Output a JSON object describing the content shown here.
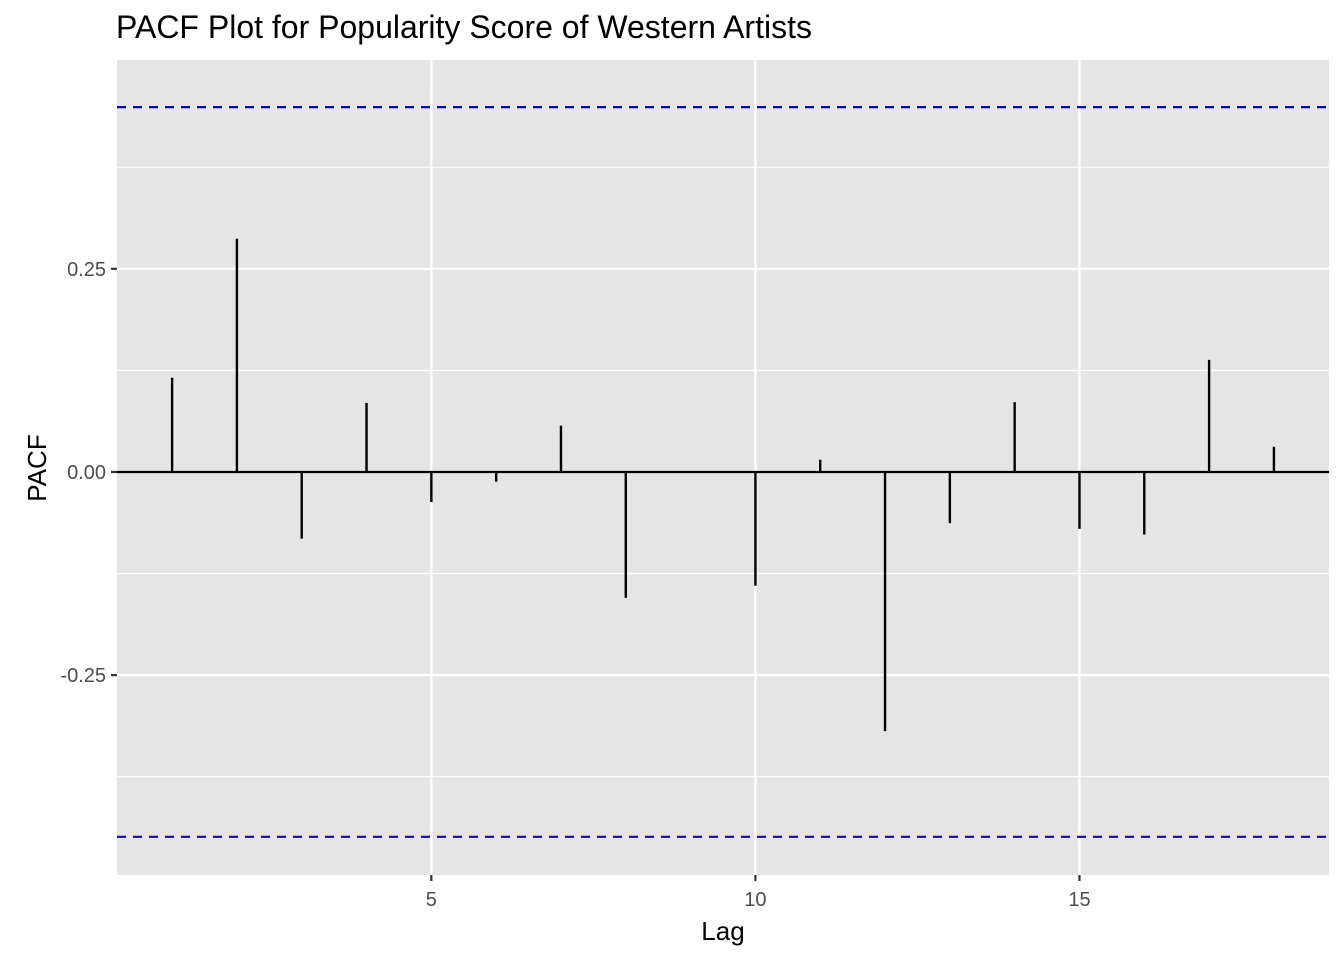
{
  "chart_data": {
    "type": "bar",
    "title": "PACF Plot for Popularity Score of Western Artists",
    "xlabel": "Lag",
    "ylabel": "PACF",
    "x": [
      1,
      2,
      3,
      4,
      5,
      6,
      7,
      8,
      9,
      10,
      11,
      12,
      13,
      14,
      15,
      16,
      17,
      18
    ],
    "values": [
      0.116,
      0.287,
      -0.082,
      0.085,
      -0.037,
      -0.012,
      0.057,
      -0.155,
      0.0,
      -0.14,
      0.015,
      -0.319,
      -0.063,
      0.086,
      -0.07,
      -0.077,
      0.138,
      0.031
    ],
    "confidence_bounds": [
      0.449,
      -0.449
    ],
    "xlim": [
      0.15,
      18.85
    ],
    "ylim": [
      -0.496,
      0.507
    ],
    "x_ticks": [
      5,
      10,
      15
    ],
    "x_tick_labels": [
      "5",
      "10",
      "15"
    ],
    "y_ticks": [
      -0.25,
      0.0,
      0.25
    ],
    "y_tick_labels": [
      "-0.25",
      "0.00",
      "0.25"
    ],
    "grid": true,
    "colors": {
      "panel": "#e5e5e5",
      "grid": "#ffffff",
      "bars": "#000000",
      "confidence": "#0000ff"
    }
  }
}
